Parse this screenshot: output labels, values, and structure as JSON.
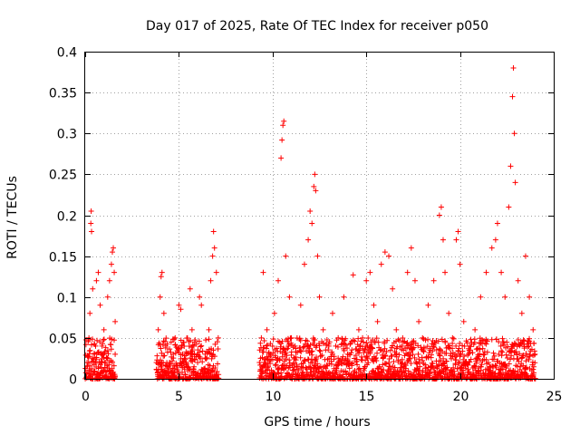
{
  "chart_data": {
    "type": "scatter",
    "title": "Day 017 of 2025, Rate Of TEC Index for receiver p050",
    "xlabel": "GPS time / hours",
    "ylabel": "ROTI / TECUs",
    "xlim": [
      0,
      25
    ],
    "ylim": [
      0,
      0.4
    ],
    "x_ticks": [
      0,
      5,
      10,
      15,
      20,
      25
    ],
    "y_ticks": [
      0,
      0.05,
      0.1,
      0.15,
      0.2,
      0.25,
      0.3,
      0.35,
      0.4
    ],
    "x_tick_labels": [
      "0",
      "5",
      "10",
      "15",
      "20",
      "25"
    ],
    "y_tick_labels": [
      "0",
      "0.05",
      "0.1",
      "0.15",
      "0.2",
      "0.25",
      "0.3",
      "0.35",
      "0.4"
    ],
    "grid": true,
    "marker": "+",
    "color": "#ff0000",
    "series": [
      {
        "name": "ROTI",
        "points": [
          [
            0.1,
            0.02
          ],
          [
            0.2,
            0.05
          ],
          [
            0.25,
            0.08
          ],
          [
            0.3,
            0.19
          ],
          [
            0.32,
            0.205
          ],
          [
            0.34,
            0.18
          ],
          [
            0.4,
            0.11
          ],
          [
            0.5,
            0.03
          ],
          [
            0.6,
            0.12
          ],
          [
            0.7,
            0.13
          ],
          [
            0.8,
            0.09
          ],
          [
            0.9,
            0.04
          ],
          [
            1.0,
            0.06
          ],
          [
            1.1,
            0.02
          ],
          [
            1.2,
            0.1
          ],
          [
            1.3,
            0.12
          ],
          [
            1.4,
            0.14
          ],
          [
            1.45,
            0.155
          ],
          [
            1.5,
            0.16
          ],
          [
            1.55,
            0.13
          ],
          [
            1.6,
            0.07
          ],
          [
            1.6,
            0.03
          ],
          [
            3.8,
            0.02
          ],
          [
            3.9,
            0.06
          ],
          [
            4.0,
            0.1
          ],
          [
            4.05,
            0.125
          ],
          [
            4.1,
            0.13
          ],
          [
            4.2,
            0.08
          ],
          [
            4.3,
            0.04
          ],
          [
            4.5,
            0.02
          ],
          [
            4.7,
            0.03
          ],
          [
            4.8,
            0.05
          ],
          [
            5.0,
            0.09
          ],
          [
            5.1,
            0.085
          ],
          [
            5.2,
            0.03
          ],
          [
            5.4,
            0.02
          ],
          [
            5.6,
            0.11
          ],
          [
            5.7,
            0.06
          ],
          [
            5.8,
            0.04
          ],
          [
            6.0,
            0.02
          ],
          [
            6.1,
            0.1
          ],
          [
            6.2,
            0.09
          ],
          [
            6.4,
            0.03
          ],
          [
            6.6,
            0.06
          ],
          [
            6.7,
            0.12
          ],
          [
            6.8,
            0.15
          ],
          [
            6.85,
            0.18
          ],
          [
            6.9,
            0.16
          ],
          [
            7.0,
            0.13
          ],
          [
            7.1,
            0.05
          ],
          [
            9.3,
            0.02
          ],
          [
            9.4,
            0.05
          ],
          [
            9.5,
            0.13
          ],
          [
            9.7,
            0.06
          ],
          [
            9.9,
            0.03
          ],
          [
            10.1,
            0.08
          ],
          [
            10.3,
            0.12
          ],
          [
            10.45,
            0.27
          ],
          [
            10.5,
            0.292
          ],
          [
            10.55,
            0.31
          ],
          [
            10.6,
            0.315
          ],
          [
            10.7,
            0.15
          ],
          [
            10.9,
            0.1
          ],
          [
            11.0,
            0.05
          ],
          [
            11.2,
            0.04
          ],
          [
            11.5,
            0.09
          ],
          [
            11.7,
            0.14
          ],
          [
            11.9,
            0.17
          ],
          [
            12.0,
            0.205
          ],
          [
            12.1,
            0.19
          ],
          [
            12.2,
            0.235
          ],
          [
            12.25,
            0.25
          ],
          [
            12.3,
            0.23
          ],
          [
            12.4,
            0.15
          ],
          [
            12.5,
            0.1
          ],
          [
            12.7,
            0.06
          ],
          [
            13.0,
            0.04
          ],
          [
            13.2,
            0.08
          ],
          [
            13.5,
            0.05
          ],
          [
            13.8,
            0.1
          ],
          [
            14.0,
            0.03
          ],
          [
            14.3,
            0.127
          ],
          [
            14.6,
            0.06
          ],
          [
            14.8,
            0.05
          ],
          [
            15.0,
            0.12
          ],
          [
            15.2,
            0.13
          ],
          [
            15.4,
            0.09
          ],
          [
            15.6,
            0.07
          ],
          [
            15.8,
            0.14
          ],
          [
            16.0,
            0.155
          ],
          [
            16.2,
            0.15
          ],
          [
            16.4,
            0.11
          ],
          [
            16.6,
            0.06
          ],
          [
            16.9,
            0.04
          ],
          [
            17.2,
            0.13
          ],
          [
            17.4,
            0.16
          ],
          [
            17.6,
            0.12
          ],
          [
            17.8,
            0.07
          ],
          [
            18.0,
            0.05
          ],
          [
            18.3,
            0.09
          ],
          [
            18.6,
            0.12
          ],
          [
            18.9,
            0.2
          ],
          [
            19.0,
            0.21
          ],
          [
            19.1,
            0.17
          ],
          [
            19.2,
            0.13
          ],
          [
            19.4,
            0.08
          ],
          [
            19.6,
            0.05
          ],
          [
            19.8,
            0.17
          ],
          [
            19.9,
            0.18
          ],
          [
            20.0,
            0.14
          ],
          [
            20.2,
            0.07
          ],
          [
            20.5,
            0.04
          ],
          [
            20.8,
            0.06
          ],
          [
            21.1,
            0.1
          ],
          [
            21.4,
            0.13
          ],
          [
            21.7,
            0.16
          ],
          [
            21.9,
            0.17
          ],
          [
            22.0,
            0.19
          ],
          [
            22.2,
            0.13
          ],
          [
            22.4,
            0.1
          ],
          [
            22.6,
            0.21
          ],
          [
            22.7,
            0.26
          ],
          [
            22.8,
            0.345
          ],
          [
            22.85,
            0.38
          ],
          [
            22.9,
            0.3
          ],
          [
            22.95,
            0.24
          ],
          [
            23.1,
            0.12
          ],
          [
            23.3,
            0.08
          ],
          [
            23.5,
            0.15
          ],
          [
            23.7,
            0.1
          ],
          [
            23.9,
            0.06
          ],
          [
            24.0,
            0.03
          ]
        ],
        "noise_windows": [
          [
            0.0,
            1.6
          ],
          [
            3.8,
            7.1
          ],
          [
            9.3,
            24.0
          ]
        ],
        "noise_level": 0.05
      }
    ]
  }
}
